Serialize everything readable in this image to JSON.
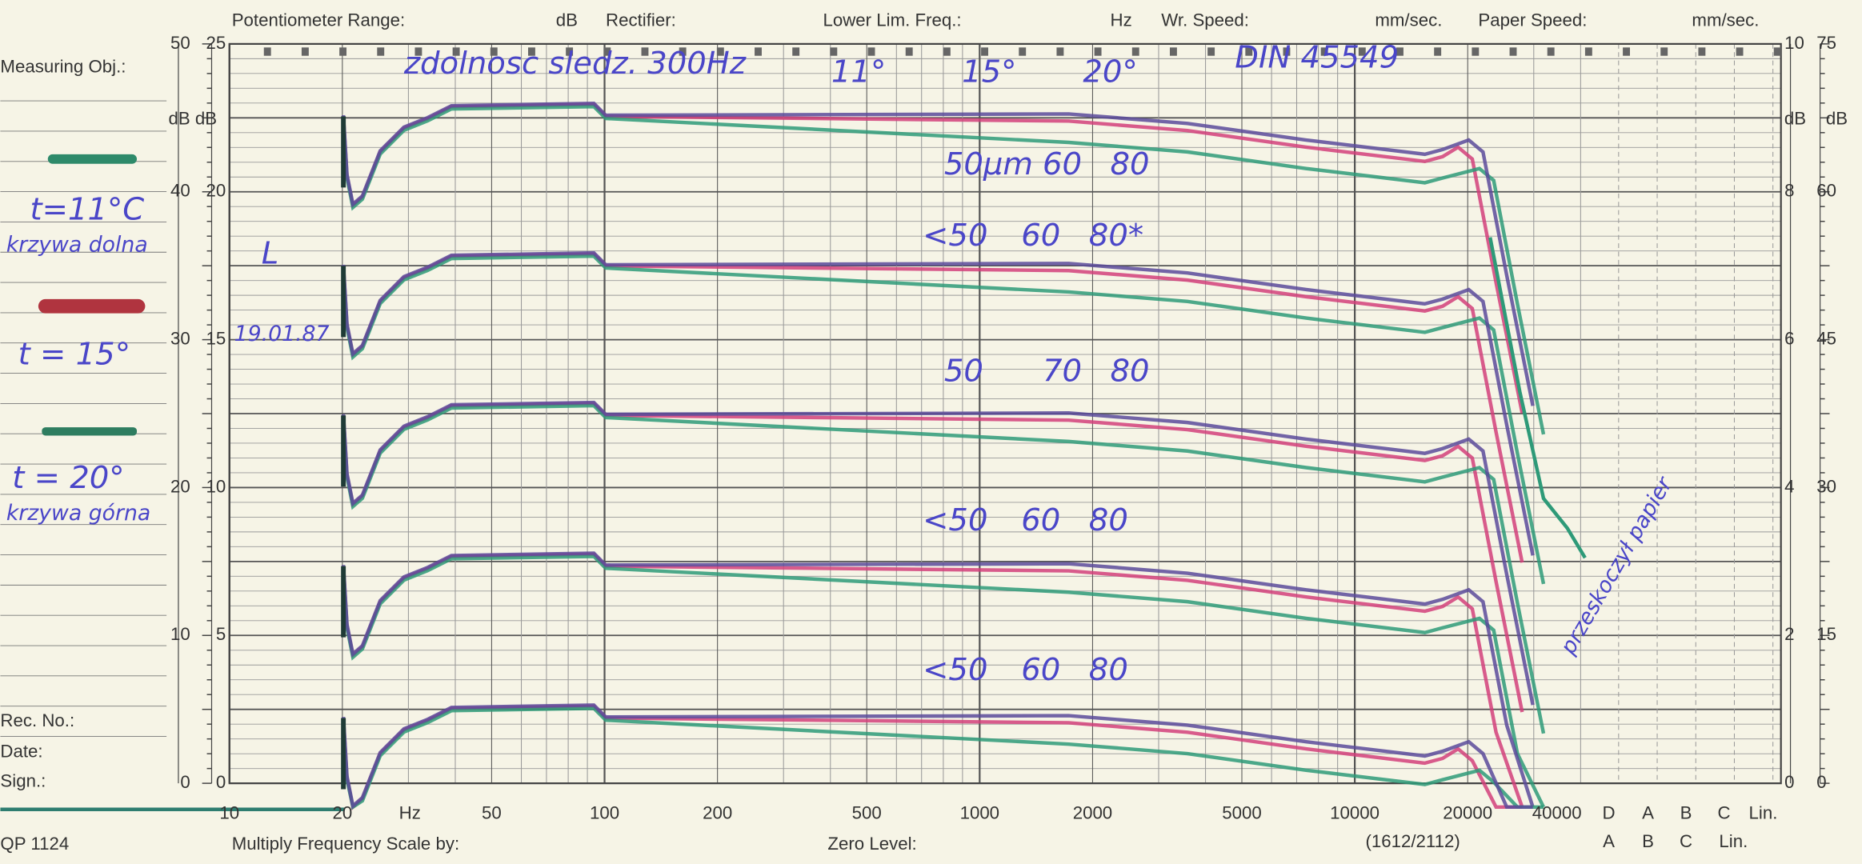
{
  "header": {
    "fields": [
      "Potentiometer Range:",
      "dB",
      "Rectifier:",
      "Lower Lim. Freq.:",
      "Hz",
      "Wr. Speed:",
      "mm/sec.",
      "Paper Speed:",
      "mm/sec."
    ]
  },
  "left_panel": {
    "measuring": "Measuring Obj.:",
    "rec": "Rec. No.:",
    "date": "Date:",
    "sign": "Sign.:",
    "model": "QP 1124"
  },
  "footer": {
    "multiply": "Multiply Frequency Scale by:",
    "zero": "Zero Level:",
    "code": "(1612/2112)"
  },
  "left_scale": {
    "outer": [
      "50",
      "40",
      "30",
      "20",
      "10",
      "0"
    ],
    "inner": [
      "25",
      "20",
      "15",
      "10",
      "5",
      "0"
    ],
    "unit": "dB dB"
  },
  "right_scale": {
    "outer": [
      "10",
      "8",
      "6",
      "4",
      "2",
      "0"
    ],
    "inner": [
      "75",
      "60",
      "45",
      "30",
      "15",
      "0"
    ],
    "unit": "dB"
  },
  "x_labels": [
    "10",
    "20",
    "Hz",
    "50",
    "100",
    "200",
    "500",
    "1000",
    "2000",
    "5000",
    "10000",
    "20000",
    "40000",
    "D",
    "A",
    "B",
    "C",
    "Lin."
  ],
  "x_labels_lower": [
    "A",
    "B",
    "C",
    "Lin."
  ],
  "notes": {
    "title": "zdolnosc sledz. 300Hz",
    "temps": [
      "11°",
      "15°",
      "20°"
    ],
    "standard": "DIN 45549",
    "mark": "L",
    "date": "19.01.87",
    "legend": [
      "t=11°C",
      "krzywa dolna",
      "t = 15°",
      "t = 20°",
      "krzywa górna"
    ],
    "rows": [
      [
        "50µm",
        "60",
        "80"
      ],
      [
        "<50",
        "60",
        "80*"
      ],
      [
        "50",
        "70",
        "80"
      ],
      [
        "<50",
        "60",
        "80"
      ],
      [
        "<50",
        "60",
        "80"
      ]
    ],
    "side": "przeskoczył papier"
  }
}
